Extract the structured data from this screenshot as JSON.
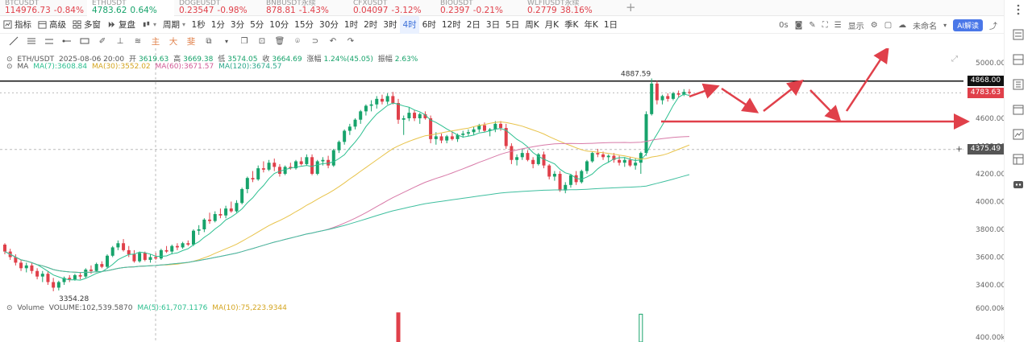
{
  "tickers": [
    {
      "price": "114976.73",
      "change": "-0.84%",
      "dir": "down",
      "sym": "BTCUSDT"
    },
    {
      "price": "4783.62",
      "change": "0.64%",
      "dir": "up",
      "sym": "ETHUSDT",
      "active": true
    },
    {
      "price": "0.23547",
      "change": "-0.98%",
      "dir": "down",
      "sym": "DOGEUSDT"
    },
    {
      "price": "878.81",
      "change": "-1.43%",
      "dir": "down",
      "sym": "BNBUSDT永续"
    },
    {
      "price": "0.04097",
      "change": "-3.12%",
      "dir": "down",
      "sym": "CFXUSDT"
    },
    {
      "price": "0.2397",
      "change": "-0.21%",
      "dir": "down",
      "sym": "BIOUSDT"
    },
    {
      "price": "0.2779",
      "change": "38.16%",
      "dir": "down",
      "sym": "WLFIUSDT永续"
    }
  ],
  "toolbar": {
    "indicators": "指标",
    "advanced": "高级",
    "multi": "多窗",
    "replay": "复盘",
    "period": "周期",
    "timeframes": [
      "1秒",
      "1分",
      "3分",
      "5分",
      "10分",
      "15分",
      "30分",
      "1时",
      "2时",
      "3时",
      "4时",
      "6时",
      "12时",
      "2日",
      "3日",
      "5日",
      "周K",
      "月K",
      "季K",
      "年K",
      "1日"
    ],
    "selected": "4时",
    "right": {
      "zero": "0s",
      "display": "显示",
      "unnamed": "未命名",
      "ai": "AI解读"
    }
  },
  "drawtools": {
    "main": "主",
    "big": "大",
    "fib": "斐"
  },
  "legend": {
    "symbol": "ETH/USDT",
    "date": "2025-08-06 20:00",
    "open_label": "开",
    "open": "3619.63",
    "high_label": "高",
    "high": "3669.38",
    "low_label": "低",
    "low": "3574.05",
    "close_label": "收",
    "close": "3664.69",
    "chg_label": "涨幅",
    "chg": "1.24%(45.05)",
    "amp_label": "振幅",
    "amp": "2.63%",
    "ma_title": "MA",
    "ma7": "MA(7):3608.84",
    "ma30": "MA(30):3552.02",
    "ma60": "MA(60):3671.57",
    "ma120": "MA(120):3674.57",
    "vol_title": "Volume",
    "vol": "VOLUME:102,539.5870",
    "vma5": "MA(5):61,707.1176",
    "vma10": "MA(10):75,223.9344"
  },
  "chart_data": {
    "type": "candlestick",
    "y_axis_labels": [
      "5000.00",
      "4800.00",
      "4600.00",
      "4400.00",
      "4200.00",
      "4000.00",
      "3800.00",
      "3600.00",
      "3400.00"
    ],
    "vol_axis_labels": [
      "600.00k",
      "400.00k"
    ],
    "high_marker": "4887.59",
    "low_marker": "3354.28",
    "price_tags": {
      "black": "4868.00",
      "red": "4783.63",
      "gray": "4375.49"
    },
    "candles": [
      {
        "o": 3690,
        "h": 3700,
        "l": 3620,
        "c": 3640
      },
      {
        "o": 3640,
        "h": 3660,
        "l": 3580,
        "c": 3600
      },
      {
        "o": 3600,
        "h": 3620,
        "l": 3540,
        "c": 3560
      },
      {
        "o": 3560,
        "h": 3580,
        "l": 3500,
        "c": 3520
      },
      {
        "o": 3520,
        "h": 3560,
        "l": 3490,
        "c": 3540
      },
      {
        "o": 3540,
        "h": 3560,
        "l": 3480,
        "c": 3500
      },
      {
        "o": 3500,
        "h": 3520,
        "l": 3440,
        "c": 3460
      },
      {
        "o": 3460,
        "h": 3500,
        "l": 3420,
        "c": 3480
      },
      {
        "o": 3480,
        "h": 3500,
        "l": 3400,
        "c": 3420
      },
      {
        "o": 3420,
        "h": 3450,
        "l": 3354,
        "c": 3380
      },
      {
        "o": 3380,
        "h": 3430,
        "l": 3360,
        "c": 3420
      },
      {
        "o": 3420,
        "h": 3460,
        "l": 3400,
        "c": 3450
      },
      {
        "o": 3450,
        "h": 3470,
        "l": 3420,
        "c": 3440
      },
      {
        "o": 3440,
        "h": 3480,
        "l": 3430,
        "c": 3470
      },
      {
        "o": 3470,
        "h": 3490,
        "l": 3440,
        "c": 3460
      },
      {
        "o": 3460,
        "h": 3520,
        "l": 3450,
        "c": 3510
      },
      {
        "o": 3510,
        "h": 3540,
        "l": 3480,
        "c": 3500
      },
      {
        "o": 3500,
        "h": 3560,
        "l": 3490,
        "c": 3550
      },
      {
        "o": 3550,
        "h": 3570,
        "l": 3520,
        "c": 3530
      },
      {
        "o": 3530,
        "h": 3620,
        "l": 3520,
        "c": 3610
      },
      {
        "o": 3610,
        "h": 3680,
        "l": 3600,
        "c": 3670
      },
      {
        "o": 3670,
        "h": 3720,
        "l": 3650,
        "c": 3700
      },
      {
        "o": 3700,
        "h": 3730,
        "l": 3640,
        "c": 3650
      },
      {
        "o": 3650,
        "h": 3680,
        "l": 3600,
        "c": 3620
      },
      {
        "o": 3620,
        "h": 3650,
        "l": 3560,
        "c": 3570
      },
      {
        "o": 3570,
        "h": 3640,
        "l": 3560,
        "c": 3630
      },
      {
        "o": 3630,
        "h": 3640,
        "l": 3570,
        "c": 3580
      },
      {
        "o": 3580,
        "h": 3620,
        "l": 3560,
        "c": 3600
      },
      {
        "o": 3600,
        "h": 3630,
        "l": 3580,
        "c": 3590
      },
      {
        "o": 3590,
        "h": 3660,
        "l": 3580,
        "c": 3650
      },
      {
        "o": 3650,
        "h": 3680,
        "l": 3630,
        "c": 3640
      },
      {
        "o": 3640,
        "h": 3690,
        "l": 3620,
        "c": 3680
      },
      {
        "o": 3680,
        "h": 3700,
        "l": 3650,
        "c": 3670
      },
      {
        "o": 3670,
        "h": 3710,
        "l": 3660,
        "c": 3700
      },
      {
        "o": 3700,
        "h": 3720,
        "l": 3680,
        "c": 3690
      },
      {
        "o": 3690,
        "h": 3800,
        "l": 3680,
        "c": 3790
      },
      {
        "o": 3790,
        "h": 3830,
        "l": 3760,
        "c": 3800
      },
      {
        "o": 3800,
        "h": 3880,
        "l": 3780,
        "c": 3870
      },
      {
        "o": 3870,
        "h": 3920,
        "l": 3840,
        "c": 3860
      },
      {
        "o": 3860,
        "h": 3930,
        "l": 3850,
        "c": 3910
      },
      {
        "o": 3910,
        "h": 3950,
        "l": 3880,
        "c": 3900
      },
      {
        "o": 3900,
        "h": 3970,
        "l": 3880,
        "c": 3950
      },
      {
        "o": 3950,
        "h": 4000,
        "l": 3920,
        "c": 3930
      },
      {
        "o": 3930,
        "h": 4010,
        "l": 3920,
        "c": 3990
      },
      {
        "o": 3990,
        "h": 4100,
        "l": 3980,
        "c": 4090
      },
      {
        "o": 4090,
        "h": 4180,
        "l": 4060,
        "c": 4170
      },
      {
        "o": 4170,
        "h": 4220,
        "l": 4140,
        "c": 4160
      },
      {
        "o": 4160,
        "h": 4260,
        "l": 4150,
        "c": 4240
      },
      {
        "o": 4240,
        "h": 4290,
        "l": 4210,
        "c": 4230
      },
      {
        "o": 4230,
        "h": 4300,
        "l": 4220,
        "c": 4280
      },
      {
        "o": 4280,
        "h": 4310,
        "l": 4220,
        "c": 4250
      },
      {
        "o": 4250,
        "h": 4270,
        "l": 4180,
        "c": 4200
      },
      {
        "o": 4200,
        "h": 4260,
        "l": 4190,
        "c": 4250
      },
      {
        "o": 4250,
        "h": 4280,
        "l": 4230,
        "c": 4240
      },
      {
        "o": 4240,
        "h": 4300,
        "l": 4230,
        "c": 4290
      },
      {
        "o": 4290,
        "h": 4320,
        "l": 4260,
        "c": 4270
      },
      {
        "o": 4270,
        "h": 4340,
        "l": 4260,
        "c": 4320
      },
      {
        "o": 4320,
        "h": 4340,
        "l": 4190,
        "c": 4200
      },
      {
        "o": 4200,
        "h": 4300,
        "l": 4190,
        "c": 4290
      },
      {
        "o": 4290,
        "h": 4320,
        "l": 4260,
        "c": 4300
      },
      {
        "o": 4300,
        "h": 4330,
        "l": 4240,
        "c": 4260
      },
      {
        "o": 4260,
        "h": 4380,
        "l": 4250,
        "c": 4370
      },
      {
        "o": 4370,
        "h": 4440,
        "l": 4350,
        "c": 4430
      },
      {
        "o": 4430,
        "h": 4520,
        "l": 4410,
        "c": 4510
      },
      {
        "o": 4510,
        "h": 4560,
        "l": 4480,
        "c": 4540
      },
      {
        "o": 4540,
        "h": 4600,
        "l": 4520,
        "c": 4590
      },
      {
        "o": 4590,
        "h": 4660,
        "l": 4560,
        "c": 4650
      },
      {
        "o": 4650,
        "h": 4700,
        "l": 4620,
        "c": 4690
      },
      {
        "o": 4690,
        "h": 4730,
        "l": 4650,
        "c": 4700
      },
      {
        "o": 4700,
        "h": 4760,
        "l": 4670,
        "c": 4740
      },
      {
        "o": 4740,
        "h": 4770,
        "l": 4700,
        "c": 4720
      },
      {
        "o": 4720,
        "h": 4780,
        "l": 4700,
        "c": 4760
      },
      {
        "o": 4760,
        "h": 4790,
        "l": 4700,
        "c": 4710
      },
      {
        "o": 4710,
        "h": 4740,
        "l": 4560,
        "c": 4590
      },
      {
        "o": 4590,
        "h": 4620,
        "l": 4480,
        "c": 4600
      },
      {
        "o": 4600,
        "h": 4680,
        "l": 4580,
        "c": 4640
      },
      {
        "o": 4640,
        "h": 4660,
        "l": 4580,
        "c": 4600
      },
      {
        "o": 4600,
        "h": 4640,
        "l": 4560,
        "c": 4630
      },
      {
        "o": 4630,
        "h": 4650,
        "l": 4590,
        "c": 4600
      },
      {
        "o": 4600,
        "h": 4620,
        "l": 4420,
        "c": 4450
      },
      {
        "o": 4450,
        "h": 4500,
        "l": 4410,
        "c": 4470
      },
      {
        "o": 4470,
        "h": 4490,
        "l": 4420,
        "c": 4440
      },
      {
        "o": 4440,
        "h": 4480,
        "l": 4420,
        "c": 4470
      },
      {
        "o": 4470,
        "h": 4500,
        "l": 4440,
        "c": 4450
      },
      {
        "o": 4450,
        "h": 4490,
        "l": 4430,
        "c": 4480
      },
      {
        "o": 4480,
        "h": 4510,
        "l": 4460,
        "c": 4490
      },
      {
        "o": 4490,
        "h": 4520,
        "l": 4470,
        "c": 4500
      },
      {
        "o": 4500,
        "h": 4540,
        "l": 4480,
        "c": 4520
      },
      {
        "o": 4520,
        "h": 4560,
        "l": 4500,
        "c": 4550
      },
      {
        "o": 4550,
        "h": 4570,
        "l": 4500,
        "c": 4510
      },
      {
        "o": 4510,
        "h": 4530,
        "l": 4470,
        "c": 4520
      },
      {
        "o": 4520,
        "h": 4580,
        "l": 4500,
        "c": 4560
      },
      {
        "o": 4560,
        "h": 4580,
        "l": 4510,
        "c": 4530
      },
      {
        "o": 4530,
        "h": 4560,
        "l": 4380,
        "c": 4400
      },
      {
        "o": 4400,
        "h": 4420,
        "l": 4270,
        "c": 4300
      },
      {
        "o": 4300,
        "h": 4340,
        "l": 4260,
        "c": 4320
      },
      {
        "o": 4320,
        "h": 4380,
        "l": 4300,
        "c": 4350
      },
      {
        "o": 4350,
        "h": 4370,
        "l": 4290,
        "c": 4300
      },
      {
        "o": 4300,
        "h": 4320,
        "l": 4240,
        "c": 4270
      },
      {
        "o": 4270,
        "h": 4350,
        "l": 4260,
        "c": 4340
      },
      {
        "o": 4340,
        "h": 4360,
        "l": 4240,
        "c": 4260
      },
      {
        "o": 4260,
        "h": 4270,
        "l": 4160,
        "c": 4180
      },
      {
        "o": 4180,
        "h": 4220,
        "l": 4150,
        "c": 4200
      },
      {
        "o": 4200,
        "h": 4220,
        "l": 4070,
        "c": 4080
      },
      {
        "o": 4080,
        "h": 4140,
        "l": 4060,
        "c": 4120
      },
      {
        "o": 4120,
        "h": 4200,
        "l": 4100,
        "c": 4190
      },
      {
        "o": 4190,
        "h": 4220,
        "l": 4120,
        "c": 4140
      },
      {
        "o": 4140,
        "h": 4230,
        "l": 4130,
        "c": 4220
      },
      {
        "o": 4220,
        "h": 4300,
        "l": 4200,
        "c": 4290
      },
      {
        "o": 4290,
        "h": 4360,
        "l": 4280,
        "c": 4350
      },
      {
        "o": 4350,
        "h": 4380,
        "l": 4320,
        "c": 4340
      },
      {
        "o": 4340,
        "h": 4360,
        "l": 4300,
        "c": 4320
      },
      {
        "o": 4320,
        "h": 4340,
        "l": 4280,
        "c": 4330
      },
      {
        "o": 4330,
        "h": 4350,
        "l": 4280,
        "c": 4300
      },
      {
        "o": 4300,
        "h": 4330,
        "l": 4260,
        "c": 4280
      },
      {
        "o": 4280,
        "h": 4320,
        "l": 4250,
        "c": 4300
      },
      {
        "o": 4300,
        "h": 4320,
        "l": 4250,
        "c": 4260
      },
      {
        "o": 4260,
        "h": 4310,
        "l": 4230,
        "c": 4280
      },
      {
        "o": 4280,
        "h": 4360,
        "l": 4200,
        "c": 4350
      },
      {
        "o": 4350,
        "h": 4650,
        "l": 4330,
        "c": 4630
      },
      {
        "o": 4630,
        "h": 4887,
        "l": 4620,
        "c": 4850
      },
      {
        "o": 4850,
        "h": 4870,
        "l": 4700,
        "c": 4730
      },
      {
        "o": 4730,
        "h": 4770,
        "l": 4700,
        "c": 4760
      },
      {
        "o": 4760,
        "h": 4780,
        "l": 4720,
        "c": 4740
      },
      {
        "o": 4740,
        "h": 4790,
        "l": 4730,
        "c": 4780
      },
      {
        "o": 4780,
        "h": 4800,
        "l": 4750,
        "c": 4770
      },
      {
        "o": 4770,
        "h": 4810,
        "l": 4760,
        "c": 4790
      },
      {
        "o": 4790,
        "h": 4810,
        "l": 4770,
        "c": 4783
      }
    ],
    "volume_bars": [
      {
        "index": 73,
        "value": 640000,
        "dir": "down"
      },
      {
        "index": 118,
        "value": 610000,
        "dir": "up"
      }
    ],
    "ma_colors": {
      "ma7": "#2bbf8f",
      "ma30": "#e8c34a",
      "ma60": "#d87aa8",
      "ma120": "#3fbf9f"
    }
  },
  "colors": {
    "up": "#17a36b",
    "down": "#e0404a",
    "arrow": "#e0404a",
    "tag_black": "#111111",
    "tag_red": "#e0404a",
    "tag_gray": "#555555"
  }
}
